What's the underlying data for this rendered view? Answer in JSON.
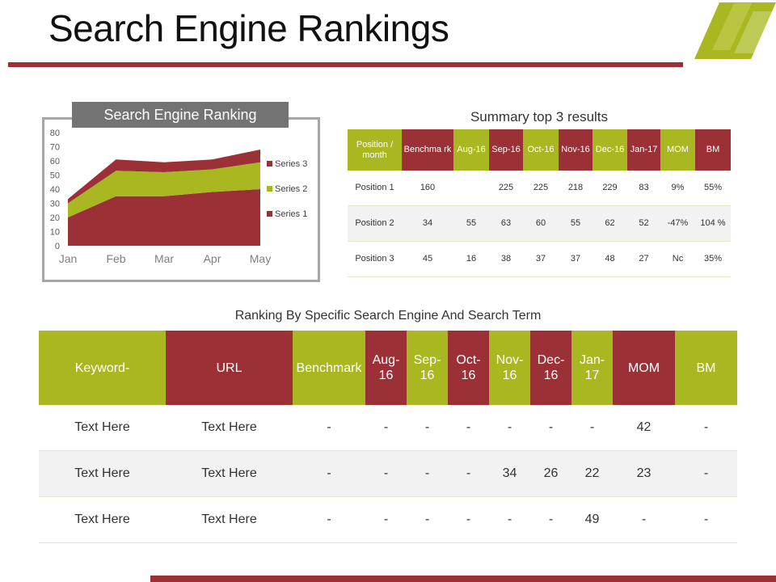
{
  "page": {
    "title": "Search Engine Rankings"
  },
  "colors": {
    "green": "#a9b820",
    "red": "#9b3037",
    "grey": "#737373"
  },
  "chart_data": {
    "type": "area",
    "title": "Search Engine Ranking",
    "categories": [
      "Jan",
      "Feb",
      "Mar",
      "Apr",
      "May"
    ],
    "stacked": true,
    "ylim": [
      0,
      80
    ],
    "yticks": [
      "0",
      "10",
      "20",
      "30",
      "40",
      "50",
      "60",
      "70",
      "80"
    ],
    "series": [
      {
        "name": "Series 1",
        "color": "#9b3037",
        "values": [
          20,
          35,
          35,
          38,
          40
        ]
      },
      {
        "name": "Series 2",
        "color": "#a9b820",
        "values": [
          10,
          18,
          17,
          16,
          19
        ]
      },
      {
        "name": "Series 3",
        "color": "#9b3037",
        "values": [
          3,
          8,
          7,
          7,
          9
        ]
      }
    ],
    "legend": [
      "Series 3",
      "Series 2",
      "Series 1"
    ],
    "legend_position": "right"
  },
  "summary": {
    "title": "Summary top 3 results",
    "headers": [
      "Position / month",
      "Benchma rk",
      "Aug-16",
      "Sep-16",
      "Oct-16",
      "Nov-16",
      "Dec-16",
      "Jan-17",
      "MOM",
      "BM"
    ],
    "rows": [
      [
        "Position 1",
        "160",
        "",
        "225",
        "225",
        "218",
        "229",
        "83",
        "9%",
        "55%"
      ],
      [
        "Position 2",
        "34",
        "55",
        "63",
        "60",
        "55",
        "62",
        "52",
        "-47%",
        "104 %"
      ],
      [
        "Position 3",
        "45",
        "16",
        "38",
        "37",
        "37",
        "48",
        "27",
        "Nc",
        "35%"
      ]
    ]
  },
  "ranking": {
    "title": "Ranking By Specific Search Engine And Search Term",
    "headers": [
      "Keyword-",
      "URL",
      "Benchmark",
      "Aug-16",
      "Sep-16",
      "Oct-16",
      "Nov-16",
      "Dec-16",
      "Jan-17",
      "MOM",
      "BM"
    ],
    "rows": [
      [
        "Text Here",
        "Text Here",
        "-",
        "-",
        "-",
        "-",
        "-",
        "-",
        "-",
        "42",
        "-"
      ],
      [
        "Text Here",
        "Text Here",
        "-",
        "-",
        "-",
        "-",
        "34",
        "26",
        "22",
        "23",
        "-"
      ],
      [
        "Text Here",
        "Text Here",
        "-",
        "-",
        "-",
        "-",
        "-",
        "-",
        "49",
        "-",
        "-"
      ]
    ]
  }
}
